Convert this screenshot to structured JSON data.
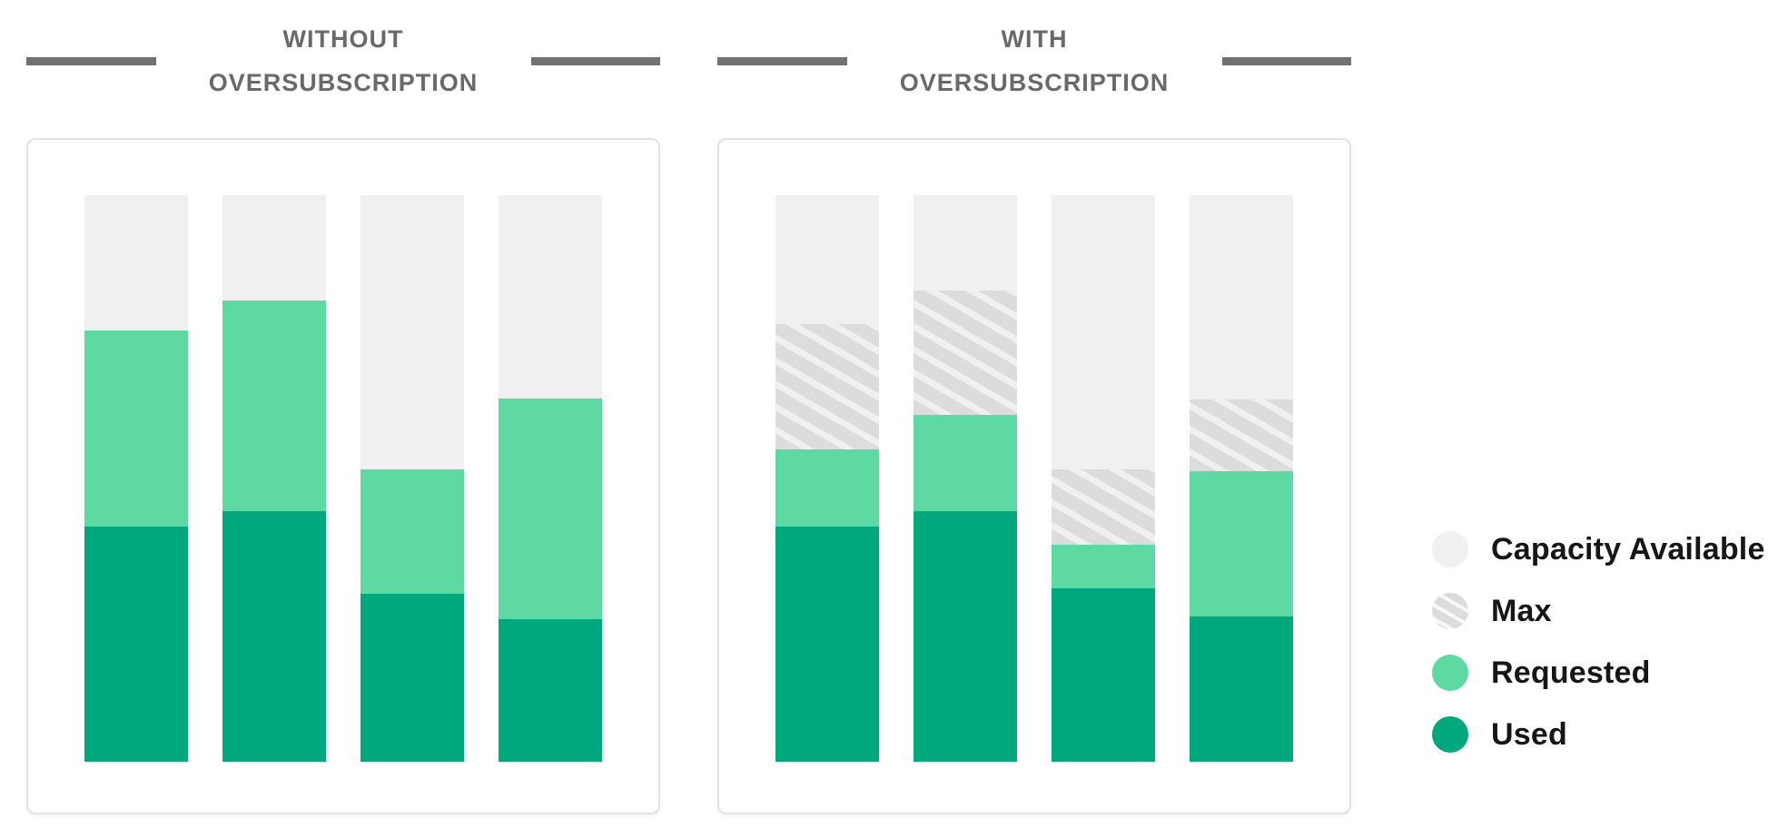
{
  "header": {
    "left_title": "WITHOUT OVERSUBSCRIPTION",
    "right_title": "WITH OVERSUBSCRIPTION"
  },
  "legend": {
    "items": [
      {
        "label": "Capacity Available",
        "swatch": "capacity"
      },
      {
        "label": "Max",
        "swatch": "max"
      },
      {
        "label": "Requested",
        "swatch": "requested"
      },
      {
        "label": "Used",
        "swatch": "used"
      }
    ]
  },
  "colors": {
    "capacity_available": "#f0f0f0",
    "max_stripe": "#dcdcdc",
    "requested": "#5ed9a3",
    "used": "#00a87c",
    "title_text": "#696969",
    "title_rule": "#717171",
    "legend_text": "#161616",
    "panel_border": "#e3e3e3"
  },
  "chart_data": {
    "type": "bar",
    "subtype": "stacked-columns",
    "value_unit": "percent_of_column_height",
    "legend": [
      "Capacity Available",
      "Max",
      "Requested",
      "Used"
    ],
    "legend_position": "right",
    "grid": false,
    "axes_labels_visible": false,
    "panels": [
      {
        "title": "WITHOUT OVERSUBSCRIPTION",
        "bars": [
          {
            "segments": [
              {
                "key": "capacity",
                "pct": 23.9
              },
              {
                "key": "requested",
                "pct": 34.6
              },
              {
                "key": "used",
                "pct": 41.5
              }
            ]
          },
          {
            "segments": [
              {
                "key": "capacity",
                "pct": 18.6
              },
              {
                "key": "requested",
                "pct": 37.2
              },
              {
                "key": "used",
                "pct": 44.2
              }
            ]
          },
          {
            "segments": [
              {
                "key": "capacity",
                "pct": 48.4
              },
              {
                "key": "requested",
                "pct": 22.0
              },
              {
                "key": "used",
                "pct": 29.6
              }
            ]
          },
          {
            "segments": [
              {
                "key": "capacity",
                "pct": 35.9
              },
              {
                "key": "requested",
                "pct": 38.9
              },
              {
                "key": "used",
                "pct": 25.2
              }
            ]
          }
        ]
      },
      {
        "title": "WITH OVERSUBSCRIPTION",
        "bars": [
          {
            "segments": [
              {
                "key": "capacity",
                "pct": 22.8
              },
              {
                "key": "max",
                "pct": 22.1
              },
              {
                "key": "requested",
                "pct": 13.6
              },
              {
                "key": "used",
                "pct": 41.5
              }
            ]
          },
          {
            "segments": [
              {
                "key": "capacity",
                "pct": 16.8
              },
              {
                "key": "max",
                "pct": 22.0
              },
              {
                "key": "requested",
                "pct": 17.0
              },
              {
                "key": "used",
                "pct": 44.2
              }
            ]
          },
          {
            "segments": [
              {
                "key": "capacity",
                "pct": 48.4
              },
              {
                "key": "max",
                "pct": 13.3
              },
              {
                "key": "requested",
                "pct": 7.7
              },
              {
                "key": "used",
                "pct": 30.6
              }
            ]
          },
          {
            "segments": [
              {
                "key": "capacity",
                "pct": 36.1
              },
              {
                "key": "max",
                "pct": 12.7
              },
              {
                "key": "requested",
                "pct": 25.6
              },
              {
                "key": "used",
                "pct": 25.6
              }
            ]
          }
        ]
      }
    ]
  }
}
